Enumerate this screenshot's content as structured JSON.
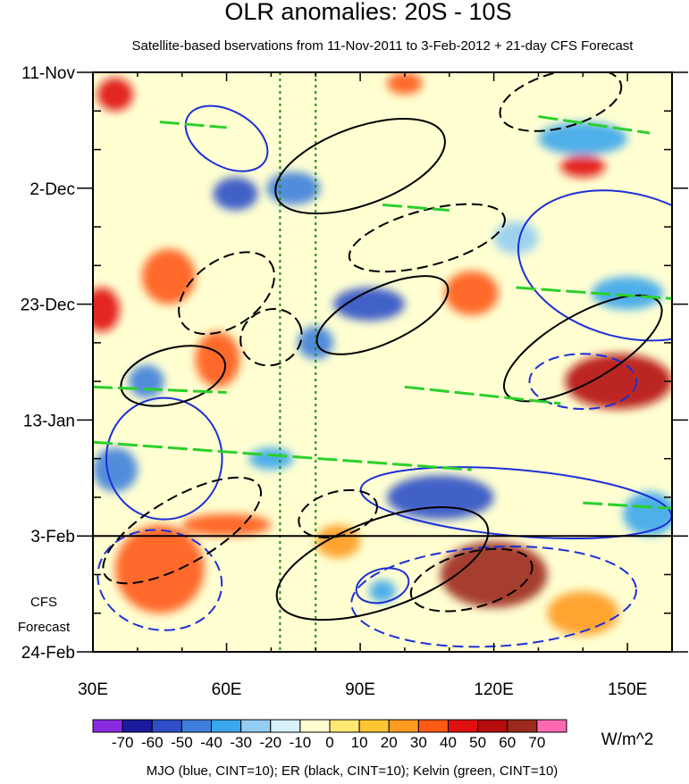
{
  "chart_data": {
    "type": "heatmap",
    "title": "OLR anomalies: 20S - 10S",
    "subtitle": "Satellite-based bservations from 11-Nov-2011 to 3-Feb-2012 + 21-day CFS Forecast",
    "x_axis": {
      "range": [
        30,
        160
      ],
      "tick_values": [
        30,
        60,
        90,
        120,
        150
      ],
      "tick_labels": [
        "30E",
        "60E",
        "90E",
        "120E",
        "150E"
      ],
      "minor_step": 10
    },
    "y_axis": {
      "range_days": [
        0,
        105
      ],
      "tick_days": [
        0,
        21,
        42,
        63,
        84,
        105
      ],
      "tick_labels": [
        "11-Nov",
        "2-Dec",
        "23-Dec",
        "13-Jan",
        "3-Feb",
        "24-Feb"
      ],
      "minor_step_days": 7,
      "direction": "down"
    },
    "forecast_start_day": 84,
    "forecast_label": [
      "CFS",
      "Forecast"
    ],
    "reference_lines_lon": [
      72,
      80
    ],
    "colorbar": {
      "levels": [
        -70,
        -60,
        -50,
        -40,
        -30,
        -20,
        -10,
        0,
        10,
        20,
        30,
        40,
        50,
        60,
        70
      ],
      "labels": [
        "-70",
        "-60",
        "-50",
        "-40",
        "-30",
        "-20",
        "-10",
        "0",
        "10",
        "20",
        "30",
        "40",
        "50",
        "60",
        "70"
      ],
      "colors": [
        "#8a2be2",
        "#1a1a9e",
        "#2e4fc7",
        "#3f7fdc",
        "#3aa6ec",
        "#94cdf2",
        "#d6f0fa",
        "#ffffd2",
        "#ffe770",
        "#ffc533",
        "#ff9a20",
        "#ff5a16",
        "#e01010",
        "#b50c0c",
        "#9c2a1e",
        "#ff69b4"
      ],
      "units": "W/m^2"
    },
    "anomaly_blobs": [
      {
        "lon": 62,
        "day": 22,
        "rlon": 5,
        "rday": 3,
        "value": -60
      },
      {
        "lon": 75,
        "day": 21,
        "rlon": 6,
        "rday": 3,
        "value": -50
      },
      {
        "lon": 92,
        "day": 42,
        "rlon": 8,
        "rday": 3,
        "value": -60
      },
      {
        "lon": 80,
        "day": 49,
        "rlon": 4,
        "rday": 3,
        "value": -50
      },
      {
        "lon": 42,
        "day": 56,
        "rlon": 4,
        "rday": 3,
        "value": -50
      },
      {
        "lon": 35,
        "day": 72,
        "rlon": 5,
        "rday": 4,
        "value": -50
      },
      {
        "lon": 70,
        "day": 70,
        "rlon": 5,
        "rday": 2,
        "value": -40
      },
      {
        "lon": 108,
        "day": 77,
        "rlon": 12,
        "rday": 4,
        "value": -60
      },
      {
        "lon": 140,
        "day": 12,
        "rlon": 10,
        "rday": 3,
        "value": -40
      },
      {
        "lon": 150,
        "day": 40,
        "rlon": 8,
        "rday": 3,
        "value": -40
      },
      {
        "lon": 155,
        "day": 80,
        "rlon": 6,
        "rday": 4,
        "value": -40
      },
      {
        "lon": 95,
        "day": 94,
        "rlon": 3,
        "rday": 2,
        "value": -40
      },
      {
        "lon": 125,
        "day": 30,
        "rlon": 5,
        "rday": 3,
        "value": -30
      },
      {
        "lon": 47,
        "day": 37,
        "rlon": 6,
        "rday": 5,
        "value": 30
      },
      {
        "lon": 58,
        "day": 52,
        "rlon": 5,
        "rday": 5,
        "value": 30
      },
      {
        "lon": 140,
        "day": 17,
        "rlon": 5,
        "rday": 2,
        "value": 40
      },
      {
        "lon": 148,
        "day": 56,
        "rlon": 12,
        "rday": 5,
        "value": 50
      },
      {
        "lon": 120,
        "day": 91,
        "rlon": 12,
        "rday": 6,
        "value": 60
      },
      {
        "lon": 45,
        "day": 90,
        "rlon": 10,
        "rday": 8,
        "value": 30
      },
      {
        "lon": 35,
        "day": 4,
        "rlon": 4,
        "rday": 3,
        "value": 40
      },
      {
        "lon": 32,
        "day": 43,
        "rlon": 4,
        "rday": 4,
        "value": 40
      },
      {
        "lon": 100,
        "day": 2,
        "rlon": 4,
        "rday": 2,
        "value": 30
      },
      {
        "lon": 115,
        "day": 40,
        "rlon": 6,
        "rday": 4,
        "value": 30
      },
      {
        "lon": 85,
        "day": 85,
        "rlon": 5,
        "rday": 3,
        "value": 20
      },
      {
        "lon": 140,
        "day": 98,
        "rlon": 8,
        "rday": 4,
        "value": 20
      },
      {
        "lon": 60,
        "day": 82,
        "rlon": 10,
        "rday": 2,
        "value": 30
      }
    ],
    "contours": {
      "mjo": {
        "color": "#1c2fd6",
        "cint": 10
      },
      "er": {
        "color": "#000000",
        "cint": 10
      },
      "kelvin": {
        "color": "#2ad02a",
        "cint": 10
      },
      "mjo_ellipses": [
        {
          "lon": 120,
          "day": 95,
          "rlon": 32,
          "rday": 9,
          "rot": -3,
          "dash": true
        },
        {
          "lon": 150,
          "day": 35,
          "rlon": 25,
          "rday": 13,
          "rot": 15,
          "dash": false
        },
        {
          "lon": 125,
          "day": 78,
          "rlon": 35,
          "rday": 6,
          "rot": 5,
          "dash": false
        },
        {
          "lon": 46,
          "day": 70,
          "rlon": 13,
          "rday": 11,
          "rot": 0,
          "dash": false
        },
        {
          "lon": 60,
          "day": 12,
          "rlon": 10,
          "rday": 5,
          "rot": 30,
          "dash": false
        },
        {
          "lon": 45,
          "day": 92,
          "rlon": 14,
          "rday": 9,
          "rot": 10,
          "dash": true
        },
        {
          "lon": 95,
          "day": 93,
          "rlon": 6,
          "rday": 3,
          "rot": -15,
          "dash": false
        },
        {
          "lon": 140,
          "day": 56,
          "rlon": 12,
          "rday": 5,
          "rot": 0,
          "dash": true
        }
      ],
      "er_ellipses": [
        {
          "lon": 90,
          "day": 17,
          "rlon": 20,
          "rday": 7,
          "rot": -20,
          "dash": false
        },
        {
          "lon": 70,
          "day": 48,
          "rlon": 7,
          "rday": 5,
          "rot": -25,
          "dash": true
        },
        {
          "lon": 95,
          "day": 44,
          "rlon": 16,
          "rday": 5,
          "rot": -25,
          "dash": false
        },
        {
          "lon": 48,
          "day": 55,
          "rlon": 12,
          "rday": 5,
          "rot": -15,
          "dash": false
        },
        {
          "lon": 105,
          "day": 30,
          "rlon": 18,
          "rday": 5,
          "rot": -15,
          "dash": true
        },
        {
          "lon": 60,
          "day": 40,
          "rlon": 12,
          "rday": 6,
          "rot": -35,
          "dash": true
        },
        {
          "lon": 85,
          "day": 80,
          "rlon": 9,
          "rday": 4,
          "rot": -15,
          "dash": true
        },
        {
          "lon": 115,
          "day": 92,
          "rlon": 14,
          "rday": 5,
          "rot": -15,
          "dash": true
        },
        {
          "lon": 95,
          "day": 89,
          "rlon": 25,
          "rday": 8,
          "rot": -20,
          "dash": false
        },
        {
          "lon": 50,
          "day": 83,
          "rlon": 20,
          "rday": 6,
          "rot": -30,
          "dash": true
        },
        {
          "lon": 140,
          "day": 50,
          "rlon": 20,
          "rday": 6,
          "rot": -30,
          "dash": false
        },
        {
          "lon": 135,
          "day": 5,
          "rlon": 14,
          "rday": 5,
          "rot": -15,
          "dash": true
        }
      ],
      "kelvin_lines": [
        {
          "lon0": 30,
          "day0": 57,
          "lon1": 60,
          "day1": 58
        },
        {
          "lon0": 30,
          "day0": 67,
          "lon1": 115,
          "day1": 72
        },
        {
          "lon0": 100,
          "day0": 57,
          "lon1": 135,
          "day1": 60
        },
        {
          "lon0": 130,
          "day0": 8,
          "lon1": 155,
          "day1": 11
        },
        {
          "lon0": 125,
          "day0": 39,
          "lon1": 160,
          "day1": 41
        },
        {
          "lon0": 95,
          "day0": 24,
          "lon1": 110,
          "day1": 25
        },
        {
          "lon0": 45,
          "day0": 9,
          "lon1": 60,
          "day1": 10
        },
        {
          "lon0": 140,
          "day0": 78,
          "lon1": 160,
          "day1": 79
        }
      ]
    },
    "footer": "MJO (blue, CINT=10); ER (black, CINT=10); Kelvin (green, CINT=10)"
  }
}
